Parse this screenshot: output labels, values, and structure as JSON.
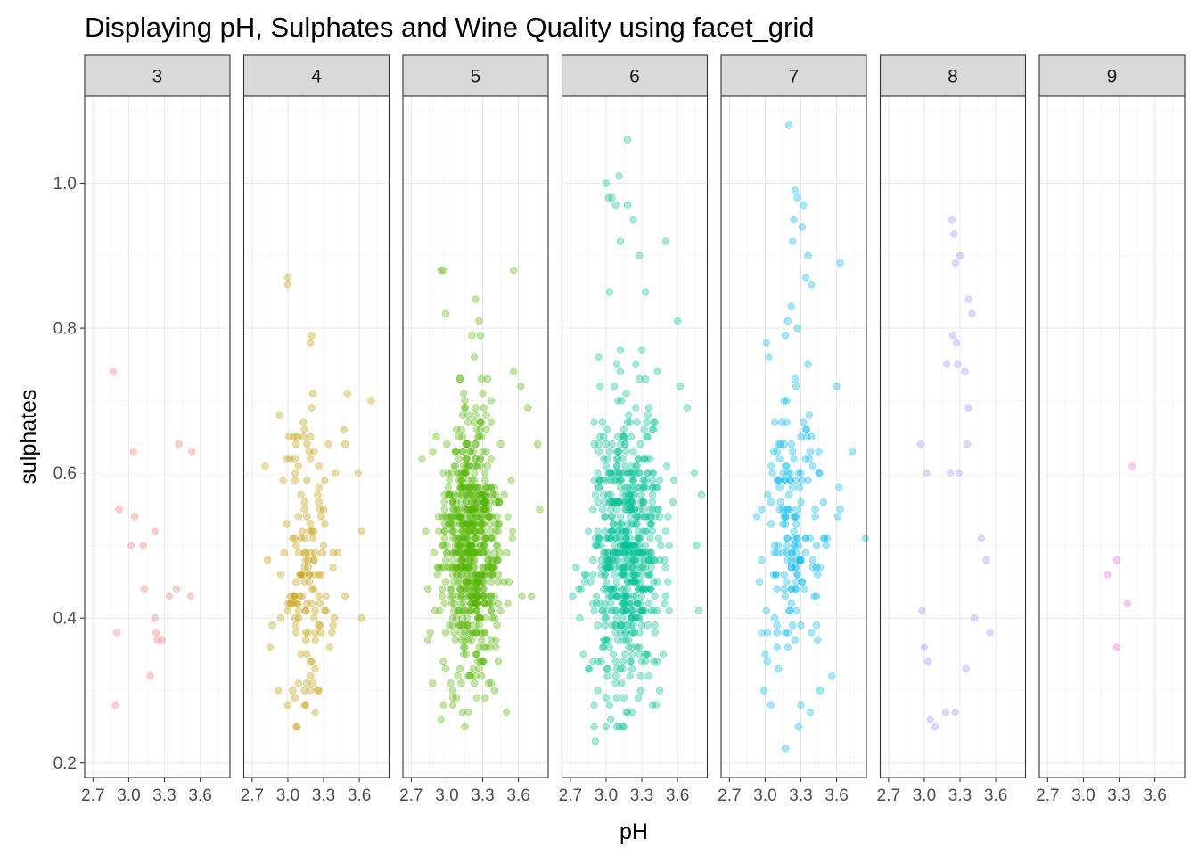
{
  "chart_data": {
    "type": "scatter",
    "title": "Displaying pH, Sulphates and Wine Quality using facet_grid",
    "xlabel": "pH",
    "ylabel": "sulphates",
    "facet_variable": "quality",
    "xlim": [
      2.63,
      3.85
    ],
    "ylim": [
      0.18,
      1.12
    ],
    "x_ticks": [
      2.7,
      3.0,
      3.3,
      3.6
    ],
    "x_tick_labels": [
      "2.7",
      "3.0",
      "3.3",
      "3.6"
    ],
    "y_ticks": [
      0.2,
      0.4,
      0.6,
      0.8,
      1.0
    ],
    "y_tick_labels": [
      "0.2",
      "0.4",
      "0.6",
      "0.8",
      "1.0"
    ],
    "grid": true,
    "point_alpha": 0.35,
    "panels": [
      {
        "facet": "3",
        "color": "#F8766D",
        "points": [
          [
            2.87,
            0.74
          ],
          [
            2.89,
            0.28
          ],
          [
            2.9,
            0.38
          ],
          [
            2.92,
            0.55
          ],
          [
            3.02,
            0.5
          ],
          [
            3.04,
            0.63
          ],
          [
            3.05,
            0.54
          ],
          [
            3.12,
            0.5
          ],
          [
            3.13,
            0.44
          ],
          [
            3.18,
            0.32
          ],
          [
            3.22,
            0.4
          ],
          [
            3.22,
            0.52
          ],
          [
            3.23,
            0.38
          ],
          [
            3.24,
            0.37
          ],
          [
            3.28,
            0.37
          ],
          [
            3.34,
            0.43
          ],
          [
            3.4,
            0.44
          ],
          [
            3.42,
            0.64
          ],
          [
            3.52,
            0.43
          ],
          [
            3.53,
            0.63
          ]
        ]
      },
      {
        "facet": "4",
        "color": "#C49A00",
        "n_points": 163,
        "points": [
          [
            3.0,
            0.87
          ],
          [
            3.0,
            0.86
          ],
          [
            2.93,
            0.68
          ],
          [
            3.01,
            0.65
          ],
          [
            3.05,
            0.65
          ],
          [
            3.2,
            0.79
          ],
          [
            3.19,
            0.78
          ],
          [
            3.21,
            0.71
          ],
          [
            3.5,
            0.71
          ],
          [
            3.7,
            0.7
          ],
          [
            3.47,
            0.66
          ],
          [
            3.48,
            0.64
          ],
          [
            2.96,
            0.59
          ],
          [
            3.34,
            0.64
          ],
          [
            3.4,
            0.6
          ],
          [
            3.62,
            0.52
          ],
          [
            3.62,
            0.4
          ],
          [
            3.39,
            0.4
          ],
          [
            2.85,
            0.36
          ],
          [
            2.92,
            0.3
          ],
          [
            3.0,
            0.28
          ],
          [
            3.08,
            0.25
          ],
          [
            3.14,
            0.28
          ],
          [
            3.25,
            0.3
          ],
          [
            3.35,
            0.36
          ]
        ],
        "cluster": {
          "x_mean": 3.18,
          "x_sd": 0.13,
          "y_mean": 0.48,
          "y_sd": 0.09
        }
      },
      {
        "facet": "5",
        "color": "#53B400",
        "n_points": 681,
        "points": [
          [
            2.95,
            0.88
          ],
          [
            2.97,
            0.88
          ],
          [
            3.56,
            0.88
          ],
          [
            3.24,
            0.84
          ],
          [
            2.99,
            0.82
          ],
          [
            3.27,
            0.81
          ],
          [
            3.28,
            0.79
          ],
          [
            3.23,
            0.76
          ],
          [
            3.56,
            0.74
          ],
          [
            3.62,
            0.72
          ],
          [
            3.68,
            0.69
          ],
          [
            3.76,
            0.64
          ],
          [
            3.78,
            0.55
          ],
          [
            3.71,
            0.43
          ],
          [
            3.63,
            0.43
          ],
          [
            2.82,
            0.52
          ],
          [
            2.84,
            0.44
          ],
          [
            2.86,
            0.38
          ],
          [
            2.84,
            0.37
          ],
          [
            2.88,
            0.31
          ],
          [
            2.97,
            0.28
          ],
          [
            3.05,
            0.28
          ],
          [
            3.13,
            0.27
          ],
          [
            3.18,
            0.27
          ],
          [
            3.25,
            0.29
          ],
          [
            3.4,
            0.3
          ]
        ],
        "cluster": {
          "x_mean": 3.2,
          "x_sd": 0.12,
          "y_mean": 0.5,
          "y_sd": 0.09
        }
      },
      {
        "facet": "6",
        "color": "#00C094",
        "n_points": 638,
        "points": [
          [
            3.18,
            1.06
          ],
          [
            3.11,
            1.01
          ],
          [
            3.0,
            1.0
          ],
          [
            3.02,
            0.98
          ],
          [
            3.05,
            0.98
          ],
          [
            3.08,
            0.97
          ],
          [
            3.18,
            0.97
          ],
          [
            3.23,
            0.95
          ],
          [
            3.12,
            0.92
          ],
          [
            3.28,
            0.9
          ],
          [
            3.33,
            0.85
          ],
          [
            3.03,
            0.85
          ],
          [
            3.5,
            0.92
          ],
          [
            3.6,
            0.81
          ],
          [
            3.62,
            0.72
          ],
          [
            3.68,
            0.69
          ],
          [
            3.74,
            0.6
          ],
          [
            3.8,
            0.57
          ],
          [
            3.76,
            0.5
          ],
          [
            2.75,
            0.47
          ],
          [
            2.72,
            0.43
          ],
          [
            2.78,
            0.4
          ],
          [
            2.86,
            0.33
          ],
          [
            2.9,
            0.25
          ],
          [
            2.91,
            0.23
          ],
          [
            3.17,
            0.27
          ],
          [
            3.22,
            0.27
          ],
          [
            3.45,
            0.3
          ],
          [
            3.78,
            0.41
          ]
        ],
        "cluster": {
          "x_mean": 3.18,
          "x_sd": 0.14,
          "y_mean": 0.5,
          "y_sd": 0.1
        }
      },
      {
        "facet": "7",
        "color": "#00B6EB",
        "n_points": 199,
        "points": [
          [
            3.2,
            1.08
          ],
          [
            3.25,
            0.99
          ],
          [
            3.27,
            0.98
          ],
          [
            3.32,
            0.97
          ],
          [
            3.24,
            0.95
          ],
          [
            3.31,
            0.94
          ],
          [
            3.23,
            0.92
          ],
          [
            3.36,
            0.9
          ],
          [
            3.34,
            0.87
          ],
          [
            3.39,
            0.86
          ],
          [
            3.63,
            0.89
          ],
          [
            3.22,
            0.83
          ],
          [
            3.19,
            0.81
          ],
          [
            3.17,
            0.79
          ],
          [
            3.73,
            0.63
          ],
          [
            3.84,
            0.51
          ],
          [
            2.93,
            0.54
          ],
          [
            2.97,
            0.48
          ],
          [
            2.95,
            0.45
          ],
          [
            3.0,
            0.35
          ],
          [
            2.99,
            0.3
          ],
          [
            3.05,
            0.28
          ],
          [
            3.17,
            0.22
          ],
          [
            3.28,
            0.25
          ],
          [
            3.38,
            0.27
          ],
          [
            3.46,
            0.3
          ],
          [
            3.56,
            0.32
          ],
          [
            3.63,
            0.55
          ]
        ],
        "cluster": {
          "x_mean": 3.24,
          "x_sd": 0.13,
          "y_mean": 0.52,
          "y_sd": 0.1
        }
      },
      {
        "facet": "8",
        "color": "#A58AFF",
        "n_points": 18,
        "points": [
          [
            3.23,
            0.95
          ],
          [
            3.25,
            0.93
          ],
          [
            3.3,
            0.9
          ],
          [
            3.26,
            0.89
          ],
          [
            3.37,
            0.84
          ],
          [
            3.4,
            0.82
          ],
          [
            3.24,
            0.79
          ],
          [
            3.27,
            0.78
          ],
          [
            3.28,
            0.75
          ],
          [
            3.19,
            0.75
          ],
          [
            3.34,
            0.74
          ],
          [
            3.37,
            0.69
          ],
          [
            2.97,
            0.64
          ],
          [
            3.02,
            0.6
          ],
          [
            3.22,
            0.6
          ],
          [
            3.29,
            0.6
          ],
          [
            3.36,
            0.64
          ],
          [
            2.98,
            0.41
          ],
          [
            3.0,
            0.36
          ],
          [
            3.03,
            0.34
          ],
          [
            3.05,
            0.26
          ],
          [
            3.09,
            0.25
          ],
          [
            3.18,
            0.27
          ],
          [
            3.26,
            0.27
          ],
          [
            3.42,
            0.4
          ],
          [
            3.48,
            0.51
          ],
          [
            3.52,
            0.48
          ],
          [
            3.55,
            0.38
          ],
          [
            3.35,
            0.33
          ]
        ],
        "cluster": {
          "x_mean": 3.22,
          "x_sd": 0.14,
          "y_mean": 0.45,
          "y_sd": 0.08
        }
      },
      {
        "facet": "9",
        "color": "#FB61D7",
        "points": [
          [
            3.2,
            0.46
          ],
          [
            3.28,
            0.48
          ],
          [
            3.28,
            0.36
          ],
          [
            3.37,
            0.42
          ],
          [
            3.41,
            0.61
          ]
        ]
      }
    ]
  }
}
